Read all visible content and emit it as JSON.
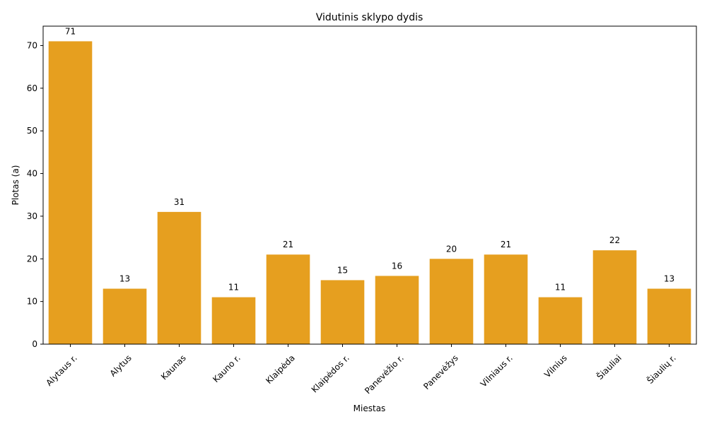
{
  "chart_data": {
    "type": "bar",
    "title": "Vidutinis sklypo dydis",
    "xlabel": "Miestas",
    "ylabel": "Plotas (a)",
    "categories": [
      "Alytaus r.",
      "Alytus",
      "Kaunas",
      "Kauno r.",
      "Klaipėda",
      "Klaipėdos r.",
      "Panevėžio r.",
      "Panevėžys",
      "Vilniaus r.",
      "Vilnius",
      "Šiauliai",
      "Šiaulių r."
    ],
    "values": [
      71,
      13,
      31,
      11,
      21,
      15,
      16,
      20,
      21,
      11,
      22,
      13
    ],
    "data_labels": [
      "71",
      "13",
      "31",
      "11",
      "21",
      "15",
      "16",
      "20",
      "21",
      "11",
      "22",
      "13"
    ],
    "ylim": [
      0,
      74.55
    ],
    "yticks": [
      0,
      10,
      20,
      30,
      40,
      50,
      60,
      70
    ],
    "ytick_labels": [
      "0",
      "10",
      "20",
      "30",
      "40",
      "50",
      "60",
      "70"
    ],
    "bar_color": "#e69f1f",
    "grid": false,
    "legend": "none"
  }
}
